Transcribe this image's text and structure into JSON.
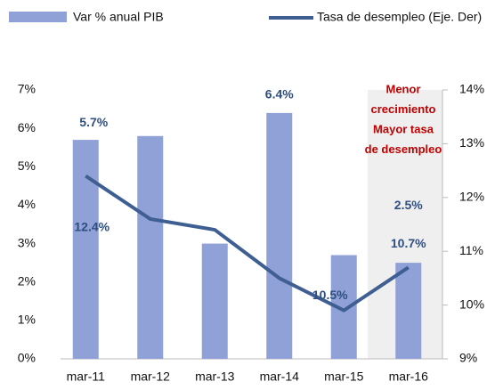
{
  "chart_data": {
    "type": "bar_line",
    "categories": [
      "mar-11",
      "mar-12",
      "mar-13",
      "mar-14",
      "mar-15",
      "mar-16"
    ],
    "series": [
      {
        "name": "Var % anual PIB",
        "type": "bar",
        "color": "#8fa1d6",
        "values": [
          5.7,
          5.8,
          3.0,
          6.4,
          2.7,
          2.5
        ],
        "value_labels": [
          "5.7%",
          null,
          null,
          "6.4%",
          null,
          "2.5%"
        ]
      },
      {
        "name": "Tasa de desempleo (Eje. Der)",
        "type": "line",
        "axis": "y2",
        "color": "#3f5f93",
        "values": [
          12.4,
          11.6,
          11.4,
          10.5,
          9.9,
          10.7
        ],
        "value_labels": [
          "12.4%",
          null,
          null,
          "10.5%",
          null,
          "10.7%"
        ]
      }
    ],
    "ylim": [
      0,
      7
    ],
    "yticks": [
      {
        "value": 0,
        "label": "0%"
      },
      {
        "value": 1,
        "label": "1%"
      },
      {
        "value": 2,
        "label": "2%"
      },
      {
        "value": 3,
        "label": "3%"
      },
      {
        "value": 4,
        "label": "4%"
      },
      {
        "value": 5,
        "label": "5%"
      },
      {
        "value": 6,
        "label": "6%"
      },
      {
        "value": 7,
        "label": "7%"
      }
    ],
    "y2lim": [
      9,
      14
    ],
    "y2ticks": [
      {
        "value": 9,
        "label": "9%"
      },
      {
        "value": 10,
        "label": "10%"
      },
      {
        "value": 11,
        "label": "11%"
      },
      {
        "value": 12,
        "label": "12%"
      },
      {
        "value": 13,
        "label": "13%"
      },
      {
        "value": 14,
        "label": "14%"
      }
    ],
    "annotation": [
      "Menor",
      "crecimiento",
      "Mayor tasa",
      "de desempleo"
    ],
    "legend": "top"
  }
}
